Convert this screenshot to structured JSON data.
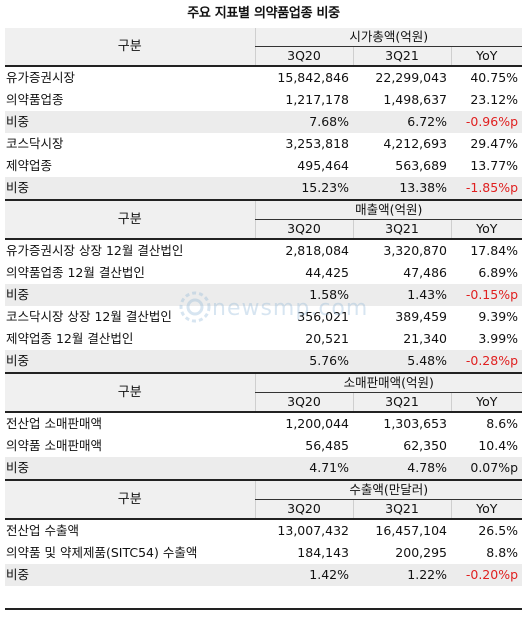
{
  "title": "주요 지표별 의약품업종 비중",
  "category_header": "구분",
  "columns": [
    "3Q20",
    "3Q21",
    "YoY"
  ],
  "sections": [
    {
      "group": "시가총액(억원)",
      "rows": [
        {
          "label": "유가증권시장",
          "v1": "15,842,846",
          "v2": "22,299,043",
          "yoy": "40.75%",
          "share": false,
          "neg": false
        },
        {
          "label": "의약품업종",
          "v1": "1,217,178",
          "v2": "1,498,637",
          "yoy": "23.12%",
          "share": false,
          "neg": false
        },
        {
          "label": "비중",
          "v1": "7.68%",
          "v2": "6.72%",
          "yoy": "-0.96%p",
          "share": true,
          "neg": true
        },
        {
          "label": "코스닥시장",
          "v1": "3,253,818",
          "v2": "4,212,693",
          "yoy": "29.47%",
          "share": false,
          "neg": false
        },
        {
          "label": "제약업종",
          "v1": "495,464",
          "v2": "563,689",
          "yoy": "13.77%",
          "share": false,
          "neg": false
        },
        {
          "label": "비중",
          "v1": "15.23%",
          "v2": "13.38%",
          "yoy": "-1.85%p",
          "share": true,
          "neg": true
        }
      ]
    },
    {
      "group": "매출액(억원)",
      "rows": [
        {
          "label": "유가증권시장 상장 12월 결산법인",
          "v1": "2,818,084",
          "v2": "3,320,870",
          "yoy": "17.84%",
          "share": false,
          "neg": false
        },
        {
          "label": "의약품업종 12월 결산법인",
          "v1": "44,425",
          "v2": "47,486",
          "yoy": "6.89%",
          "share": false,
          "neg": false
        },
        {
          "label": "비중",
          "v1": "1.58%",
          "v2": "1.43%",
          "yoy": "-0.15%p",
          "share": true,
          "neg": true
        },
        {
          "label": "코스닥시장 상장 12월 결산법인",
          "v1": "356,021",
          "v2": "389,459",
          "yoy": "9.39%",
          "share": false,
          "neg": false
        },
        {
          "label": "제약업종 12월 결산법인",
          "v1": "20,521",
          "v2": "21,340",
          "yoy": "3.99%",
          "share": false,
          "neg": false
        },
        {
          "label": "비중",
          "v1": "5.76%",
          "v2": "5.48%",
          "yoy": "-0.28%p",
          "share": true,
          "neg": true
        }
      ]
    },
    {
      "group": "소매판매액(억원)",
      "rows": [
        {
          "label": "전산업 소매판매액",
          "v1": "1,200,044",
          "v2": "1,303,653",
          "yoy": "8.6%",
          "share": false,
          "neg": false
        },
        {
          "label": "의약품 소매판매액",
          "v1": "56,485",
          "v2": "62,350",
          "yoy": "10.4%",
          "share": false,
          "neg": false
        },
        {
          "label": "비중",
          "v1": "4.71%",
          "v2": "4.78%",
          "yoy": "0.07%p",
          "share": true,
          "neg": false
        }
      ]
    },
    {
      "group": "수출액(만달러)",
      "rows": [
        {
          "label": "전산업 수출액",
          "v1": "13,007,432",
          "v2": "16,457,104",
          "yoy": "26.5%",
          "share": false,
          "neg": false
        },
        {
          "label": "의약품 및 약제제품(SITC54) 수출액",
          "v1": "184,143",
          "v2": "200,295",
          "yoy": "8.8%",
          "share": false,
          "neg": false
        },
        {
          "label": "비중",
          "v1": "1.42%",
          "v2": "1.22%",
          "yoy": "-0.20%p",
          "share": true,
          "neg": true
        }
      ]
    }
  ],
  "watermark": "newsmp.com",
  "colors": {
    "negative": "#e02020",
    "header_bg": "#f0f0f0",
    "share_bg": "#ececec"
  }
}
